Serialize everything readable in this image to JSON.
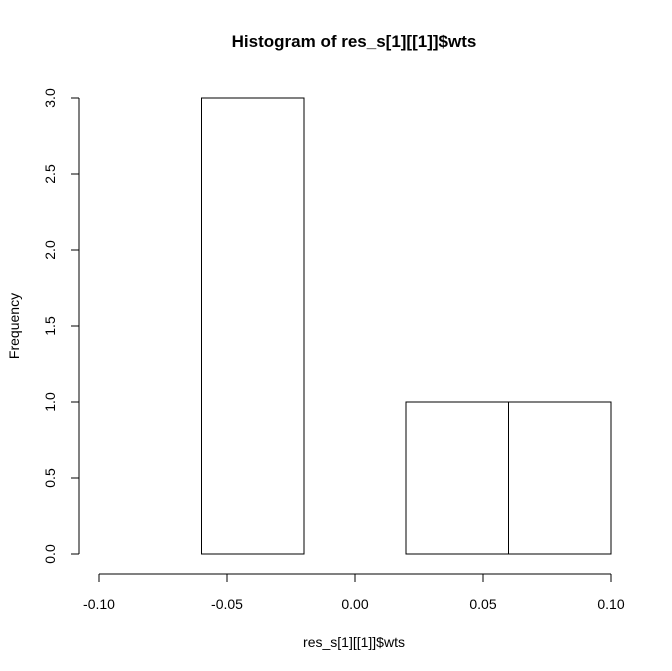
{
  "chart_data": {
    "type": "bar",
    "title": "Histogram of res_s[1][[1]]$wts",
    "xlabel": "res_s[1][[1]]$wts",
    "ylabel": "Frequency",
    "bins": [
      {
        "from": -0.1,
        "to": -0.06,
        "count": 0
      },
      {
        "from": -0.06,
        "to": -0.02,
        "count": 3
      },
      {
        "from": -0.02,
        "to": 0.02,
        "count": 0
      },
      {
        "from": 0.02,
        "to": 0.06,
        "count": 1
      },
      {
        "from": 0.06,
        "to": 0.1,
        "count": 1
      }
    ],
    "xlim": [
      -0.1,
      0.1
    ],
    "ylim": [
      0,
      3
    ],
    "xticks": [
      -0.1,
      -0.05,
      0.0,
      0.05,
      0.1
    ],
    "xtick_labels": [
      "-0.10",
      "-0.05",
      "0.00",
      "0.05",
      "0.10"
    ],
    "yticks": [
      0,
      0.5,
      1,
      1.5,
      2,
      2.5,
      3
    ],
    "ytick_labels": [
      "0.0",
      "0.5",
      "1.0",
      "1.5",
      "2.0",
      "2.5",
      "3.0"
    ],
    "grid": false,
    "colors": {
      "bar_fill": "#ffffff",
      "stroke": "#000000"
    }
  }
}
